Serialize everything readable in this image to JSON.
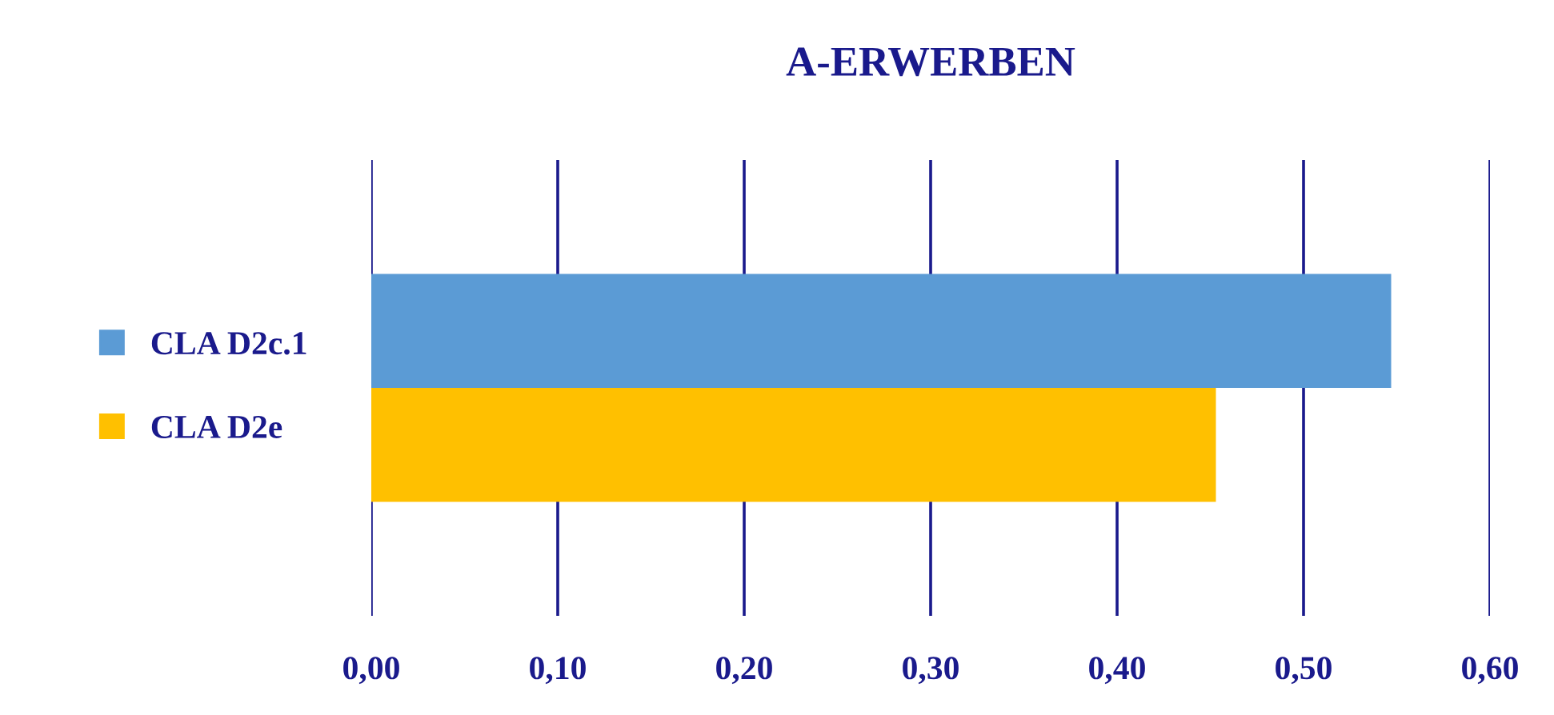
{
  "chart_data": {
    "type": "bar",
    "orientation": "horizontal",
    "title": "A-ERWERBEN",
    "categories": [
      null
    ],
    "series": [
      {
        "name": "CLA D2c.1",
        "color": "#5b9bd5",
        "values": [
          0.547
        ]
      },
      {
        "name": "CLA D2e",
        "color": "#ffc000",
        "values": [
          0.453
        ]
      }
    ],
    "xlim": [
      0,
      0.6
    ],
    "xticks": [
      {
        "value": 0,
        "label": "0,00"
      },
      {
        "value": 0.1,
        "label": "0,10"
      },
      {
        "value": 0.2,
        "label": "0,20"
      },
      {
        "value": 0.3,
        "label": "0,30"
      },
      {
        "value": 0.4,
        "label": "0,40"
      },
      {
        "value": 0.5,
        "label": "0,50"
      },
      {
        "value": 0.6,
        "label": "0,60"
      }
    ],
    "grid": "x",
    "legend": "left",
    "tick_labels": "x"
  }
}
